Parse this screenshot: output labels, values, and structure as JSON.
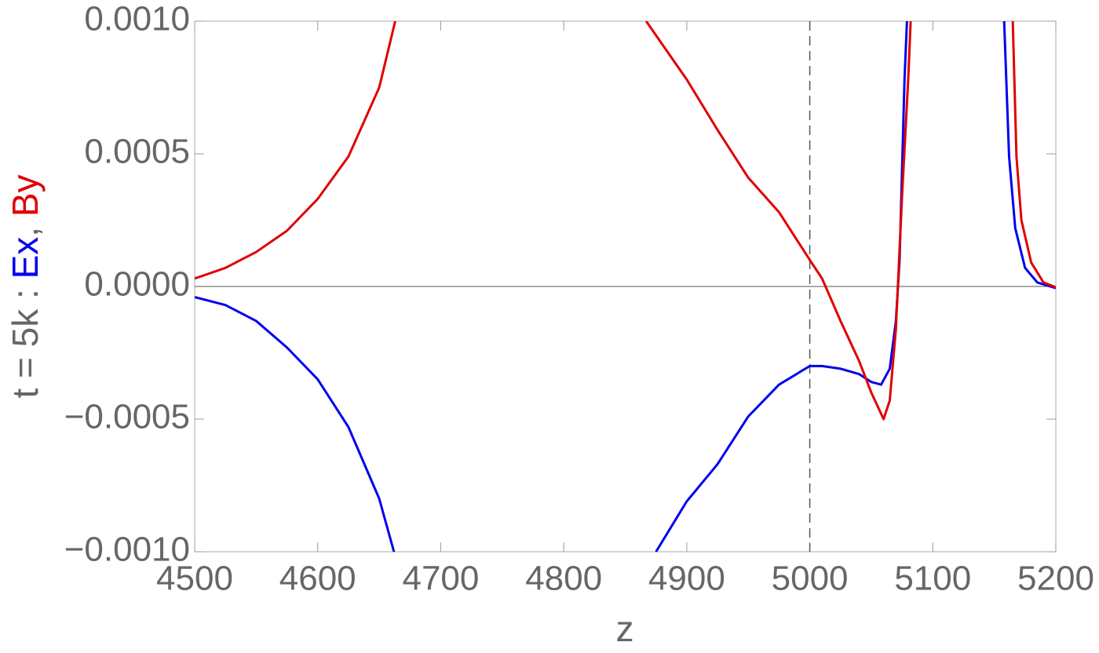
{
  "chart_data": {
    "type": "line",
    "xlabel": "z",
    "ylabel_parts": [
      {
        "text": "t = 5k : ",
        "color": "#666666"
      },
      {
        "text": "Ex",
        "color": "#0000ee"
      },
      {
        "text": ", ",
        "color": "#666666"
      },
      {
        "text": "By",
        "color": "#e00000"
      }
    ],
    "xlim": [
      4500,
      5200
    ],
    "ylim": [
      -0.001,
      0.001
    ],
    "xticks": [
      4500,
      4600,
      4700,
      4800,
      4900,
      5000,
      5100,
      5200
    ],
    "yticks": [
      {
        "value": -0.001,
        "label": "−0.0010"
      },
      {
        "value": -0.0005,
        "label": "−0.0005"
      },
      {
        "value": 0,
        "label": "0.0000"
      },
      {
        "value": 0.0005,
        "label": "0.0005"
      },
      {
        "value": 0.001,
        "label": "0.0010"
      }
    ],
    "reference_line_x": 5000,
    "series": [
      {
        "name": "Ex",
        "color": "#0000ee",
        "x": [
          4500,
          4525,
          4550,
          4575,
          4600,
          4625,
          4650,
          4662,
          4770,
          4875,
          4900,
          4925,
          4950,
          4975,
          5000,
          5010,
          5025,
          5040,
          5050,
          5058,
          5065,
          5070,
          5073,
          5077,
          5079,
          5120,
          5158,
          5162,
          5167,
          5175,
          5185,
          5200
        ],
        "values": [
          -4e-05,
          -7e-05,
          -0.00013,
          -0.00023,
          -0.00035,
          -0.00053,
          -0.0008,
          -0.001,
          null,
          -0.001,
          -0.00081,
          -0.00067,
          -0.00049,
          -0.00037,
          -0.0003,
          -0.0003,
          -0.00031,
          -0.00033,
          -0.00036,
          -0.00037,
          -0.00031,
          -0.00013,
          0.0001,
          0.00078,
          0.001,
          null,
          0.001,
          0.00049,
          0.00022,
          7e-05,
          1.5e-05,
          -6e-06
        ]
      },
      {
        "name": "By",
        "color": "#e00000",
        "x": [
          4500,
          4525,
          4550,
          4575,
          4600,
          4625,
          4650,
          4663,
          4770,
          4867,
          4900,
          4925,
          4950,
          4975,
          5000,
          5010,
          5025,
          5040,
          5050,
          5060,
          5065,
          5070,
          5075,
          5080,
          5082,
          5120,
          5165,
          5168,
          5172,
          5180,
          5190,
          5200
        ],
        "values": [
          3e-05,
          7e-05,
          0.00013,
          0.00021,
          0.00033,
          0.00049,
          0.00075,
          0.001,
          null,
          0.001,
          0.00078,
          0.00059,
          0.00041,
          0.00028,
          0.0001,
          3e-05,
          -0.00013,
          -0.00028,
          -0.0004,
          -0.0005,
          -0.00043,
          -0.00016,
          0.00034,
          0.00078,
          0.001,
          null,
          0.001,
          0.00049,
          0.00025,
          9e-05,
          1.5e-05,
          -3e-06
        ]
      }
    ]
  }
}
